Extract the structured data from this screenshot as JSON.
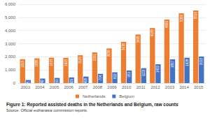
{
  "chart_data": {
    "type": "bar",
    "title": "Figure 1: Reported assisted deaths in the Netherlands and Belgium, raw counts",
    "subtitle": "Source: Official euthanasia commission reports.",
    "categories": [
      "2003",
      "2004",
      "2005",
      "2006",
      "2007",
      "2008",
      "2009",
      "2010",
      "2011",
      "2012",
      "2013",
      "2014",
      "2015"
    ],
    "series": [
      {
        "name": "Netherlands",
        "color": "#ed7d31",
        "values": [
          1815,
          1886,
          1933,
          1923,
          2120,
          2331,
          2636,
          3136,
          3695,
          4188,
          4829,
          5306,
          5516
        ]
      },
      {
        "name": "Belgium",
        "color": "#4472c4",
        "values": [
          235,
          349,
          393,
          429,
          495,
          704,
          822,
          953,
          1133,
          1432,
          1807,
          1928,
          2022
        ]
      }
    ],
    "ylim": [
      0,
      6000
    ],
    "yticks": [
      0,
      1000,
      2000,
      3000,
      4000,
      5000,
      6000
    ],
    "grid": true,
    "legend": "bottom",
    "data_labels": true
  }
}
